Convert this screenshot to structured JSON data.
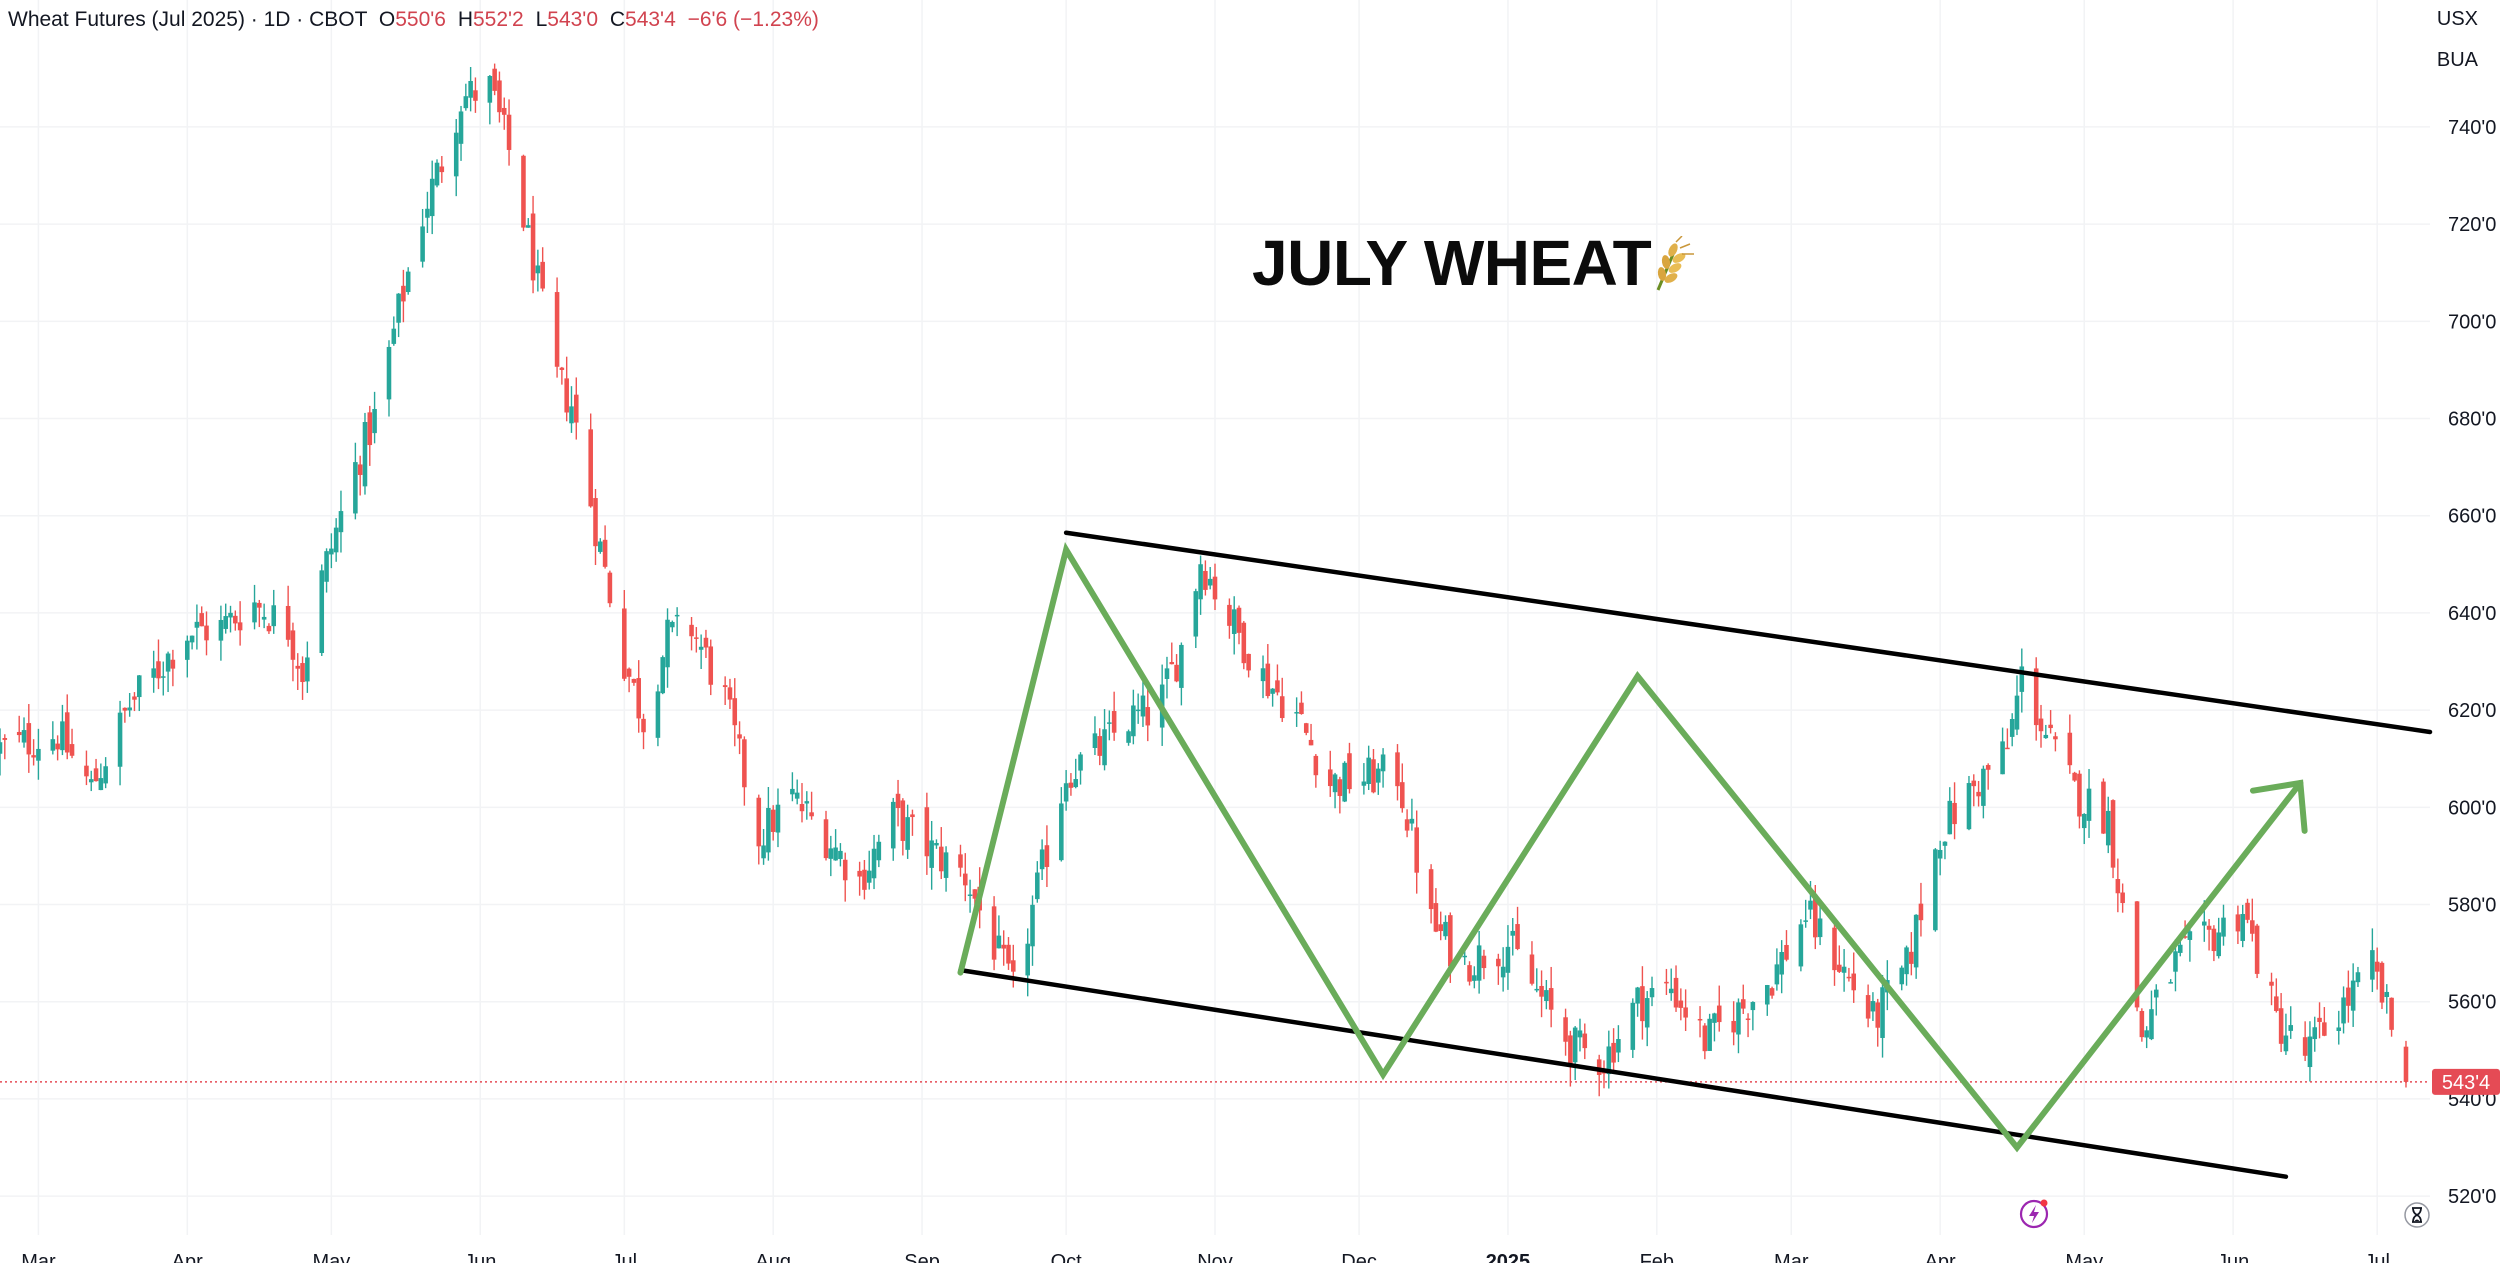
{
  "legend": {
    "instrument": "Wheat Futures (Jul 2025) · 1D · CBOT",
    "open_label": "O",
    "open_value": "550'6",
    "high_label": "H",
    "high_value": "552'2",
    "low_label": "L",
    "low_value": "543'0",
    "close_label": "C",
    "close_value": "543'4",
    "change": "−6'6 (−1.23%)"
  },
  "price_axis_units": [
    "USX",
    "BUA"
  ],
  "annotation": {
    "title": "JULY WHEAT",
    "icon": "wheat-icon"
  },
  "current_price_label": "543'4",
  "icons": {
    "bolt": "lightning-bolt-icon",
    "hourglass": "hourglass-icon"
  },
  "colors": {
    "up": "#26a69a",
    "down": "#ef5350",
    "channel": "#000000",
    "zigzag": "#6aac5a",
    "price_badge": "#e54b55",
    "grid": "#f2f3f5",
    "bolt": "#9c27b0"
  },
  "chart_data": {
    "type": "candlestick",
    "title": "Wheat Futures (Jul 2025) · 1D · CBOT",
    "xlabel": "",
    "ylabel": "USX",
    "y_ticks": [
      520,
      540,
      560,
      580,
      600,
      620,
      640,
      660,
      680,
      700,
      720,
      740
    ],
    "y_tick_labels": [
      "520'0",
      "540'0",
      "560'0",
      "580'0",
      "600'0",
      "620'0",
      "640'0",
      "660'0",
      "680'0",
      "700'0",
      "720'0",
      "740'0"
    ],
    "ylim": [
      512,
      762
    ],
    "x_tick_labels": [
      "Mar",
      "Apr",
      "May",
      "Jun",
      "Jul",
      "Aug",
      "Sep",
      "Oct",
      "Nov",
      "Dec",
      "2025",
      "Feb",
      "Mar",
      "Apr",
      "May",
      "Jun",
      "Jul"
    ],
    "x_tick_dates": [
      "2024-03-01",
      "2024-04-01",
      "2024-05-01",
      "2024-06-01",
      "2024-07-01",
      "2024-08-01",
      "2024-09-01",
      "2024-10-01",
      "2024-11-01",
      "2024-12-01",
      "2025-01-01",
      "2025-02-01",
      "2025-03-01",
      "2025-04-01",
      "2025-05-01",
      "2025-06-01",
      "2025-07-01"
    ],
    "xlim": [
      "2024-02-22",
      "2025-07-12"
    ],
    "close_path": [
      [
        "2024-02-22",
        612
      ],
      [
        "2024-03-05",
        615
      ],
      [
        "2024-03-12",
        604
      ],
      [
        "2024-03-20",
        621
      ],
      [
        "2024-04-01",
        636
      ],
      [
        "2024-04-08",
        637
      ],
      [
        "2024-04-15",
        642
      ],
      [
        "2024-04-22",
        637
      ],
      [
        "2024-04-25",
        628
      ],
      [
        "2024-04-29",
        647
      ],
      [
        "2024-05-06",
        670
      ],
      [
        "2024-05-10",
        680
      ],
      [
        "2024-05-15",
        702
      ],
      [
        "2024-05-20",
        722
      ],
      [
        "2024-05-24",
        733
      ],
      [
        "2024-05-28",
        746
      ],
      [
        "2024-06-03",
        748
      ],
      [
        "2024-06-07",
        735
      ],
      [
        "2024-06-12",
        712
      ],
      [
        "2024-06-17",
        688
      ],
      [
        "2024-06-20",
        683
      ],
      [
        "2024-06-25",
        658
      ],
      [
        "2024-07-01",
        630
      ],
      [
        "2024-07-05",
        618
      ],
      [
        "2024-07-10",
        635
      ],
      [
        "2024-07-15",
        637
      ],
      [
        "2024-07-22",
        622
      ],
      [
        "2024-07-29",
        594
      ],
      [
        "2024-08-05",
        602
      ],
      [
        "2024-08-12",
        594
      ],
      [
        "2024-08-19",
        585
      ],
      [
        "2024-08-26",
        598
      ],
      [
        "2024-09-03",
        591
      ],
      [
        "2024-09-10",
        586
      ],
      [
        "2024-09-15",
        574
      ],
      [
        "2024-09-20",
        562
      ],
      [
        "2024-09-25",
        583
      ],
      [
        "2024-10-01",
        607
      ],
      [
        "2024-10-08",
        612
      ],
      [
        "2024-10-14",
        618
      ],
      [
        "2024-10-20",
        620
      ],
      [
        "2024-10-25",
        633
      ],
      [
        "2024-10-29",
        651
      ],
      [
        "2024-11-04",
        639
      ],
      [
        "2024-11-11",
        627
      ],
      [
        "2024-11-18",
        619
      ],
      [
        "2024-11-25",
        605
      ],
      [
        "2024-12-02",
        606
      ],
      [
        "2024-12-09",
        607
      ],
      [
        "2024-12-16",
        576
      ],
      [
        "2024-12-23",
        568
      ],
      [
        "2025-01-01",
        572
      ],
      [
        "2025-01-07",
        562
      ],
      [
        "2025-01-14",
        551
      ],
      [
        "2025-01-21",
        548
      ],
      [
        "2025-01-28",
        560
      ],
      [
        "2025-02-04",
        563
      ],
      [
        "2025-02-11",
        552
      ],
      [
        "2025-02-18",
        558
      ],
      [
        "2025-02-25",
        565
      ],
      [
        "2025-03-04",
        578
      ],
      [
        "2025-03-11",
        568
      ],
      [
        "2025-03-18",
        556
      ],
      [
        "2025-03-25",
        567
      ],
      [
        "2025-04-01",
        595
      ],
      [
        "2025-04-08",
        604
      ],
      [
        "2025-04-15",
        612
      ],
      [
        "2025-04-18",
        627
      ],
      [
        "2025-04-23",
        615
      ],
      [
        "2025-04-29",
        603
      ],
      [
        "2025-05-06",
        598
      ],
      [
        "2025-05-13",
        553
      ],
      [
        "2025-05-20",
        568
      ],
      [
        "2025-05-27",
        573
      ],
      [
        "2025-06-03",
        579
      ],
      [
        "2025-06-10",
        556
      ],
      [
        "2025-06-16",
        549
      ],
      [
        "2025-06-23",
        558
      ],
      [
        "2025-06-30",
        567
      ],
      [
        "2025-07-03",
        558
      ],
      [
        "2025-07-07",
        543.5
      ]
    ],
    "last_date": "2025-07-07",
    "last_close": 543.5,
    "trendlines": [
      {
        "name": "channel-upper",
        "points": [
          [
            "2024-10-01",
            656.5
          ],
          [
            "2025-07-12",
            615.5
          ]
        ]
      },
      {
        "name": "channel-lower",
        "points": [
          [
            "2024-09-09",
            566.5
          ],
          [
            "2025-06-12",
            524
          ]
        ]
      },
      {
        "name": "zigzag",
        "points": [
          [
            "2024-09-09",
            566
          ],
          [
            "2024-10-01",
            653
          ],
          [
            "2024-12-06",
            545
          ],
          [
            "2025-01-28",
            627
          ],
          [
            "2025-04-17",
            530
          ],
          [
            "2025-06-15",
            605
          ]
        ]
      }
    ],
    "grid": true
  }
}
